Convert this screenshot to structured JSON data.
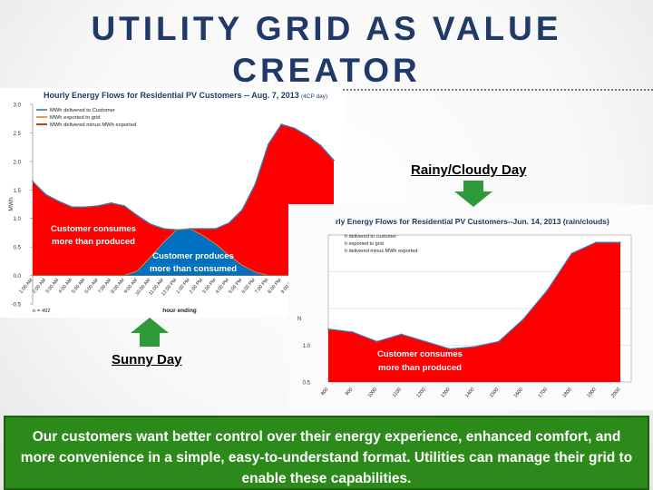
{
  "slide": {
    "title_line1": "UTILITY GRID AS VALUE",
    "title_line2": "CREATOR",
    "sunny_label": "Sunny Day",
    "rainy_label": "Rainy/Cloudy Day",
    "banner_text": "Our customers want better control over their energy experience, enhanced comfort, and more convenience in a simple, easy-to-understand format.  Utilities can manage their grid to enable these capabilities.",
    "colors": {
      "title": "#1f3a68",
      "banner": "#2b8a19",
      "arrow": "#2e9a3c",
      "consume": "#ff0000",
      "produce": "#0070c0"
    }
  },
  "chart_data": [
    {
      "type": "area",
      "title": "Hourly Energy Flows for Residential PV Customers -- Aug. 7, 2013",
      "title_note": "(4CP day)",
      "xlabel": "hour ending",
      "ylabel": "MWh",
      "footnote": "n = 492",
      "ylim": [
        -0.5,
        3.0
      ],
      "yticks": [
        "3.0",
        "2.5",
        "2.0",
        "1.5",
        "1.0",
        "0.5",
        "0.0",
        "-0.5"
      ],
      "legend": [
        "MWh delivered to Customer",
        "MWh exported to grid",
        "MWh delivered minus MWh exported"
      ],
      "categories": [
        "1:00 AM",
        "2:00 AM",
        "3:00 AM",
        "4:00 AM",
        "5:00 AM",
        "6:00 AM",
        "7:00 AM",
        "8:00 AM",
        "9:00 AM",
        "10:00 AM",
        "11:00 AM",
        "12:00 PM",
        "1:00 PM",
        "2:00 PM",
        "3:00 PM",
        "4:00 PM",
        "5:00 PM",
        "6:00 PM",
        "7:00 PM",
        "8:00 PM",
        "9:00 PM",
        "10:00 PM",
        "11:00 PM",
        "12:00 AM"
      ],
      "series": [
        {
          "name": "MWh delivered to Customer",
          "values": [
            1.65,
            1.42,
            1.3,
            1.2,
            1.2,
            1.22,
            1.27,
            1.22,
            1.05,
            0.9,
            0.82,
            0.8,
            0.82,
            0.82,
            0.82,
            0.92,
            1.15,
            1.6,
            2.3,
            2.65,
            2.58,
            2.45,
            2.28,
            2.02
          ]
        },
        {
          "name": "MWh exported to grid",
          "values": [
            0,
            0,
            0,
            0,
            0,
            0,
            0,
            0,
            0.08,
            0.32,
            0.58,
            0.8,
            0.82,
            0.7,
            0.55,
            0.35,
            0.18,
            0.06,
            0,
            0,
            0,
            0,
            0,
            0
          ]
        }
      ],
      "annotations": [
        {
          "text_line1": "Customer consumes",
          "text_line2": "more than produced"
        },
        {
          "text_line1": "Customer produces",
          "text_line2": "more than consumed"
        }
      ]
    },
    {
      "type": "area",
      "title": "rly Energy Flows for Residential PV Customers--Jun. 14, 2013 (rain/clouds)",
      "ylabel": "N",
      "ylim": [
        0.5,
        2.5
      ],
      "yticks": [
        "1.0",
        "0.5"
      ],
      "legend": [
        "h delivered to customer",
        "h exported to grid",
        "h delivered minus MWh exported"
      ],
      "categories": [
        "800",
        "900",
        "1000",
        "1100",
        "1200",
        "1300",
        "1400",
        "1500",
        "1600",
        "1700",
        "1800",
        "1900",
        "2000"
      ],
      "series": [
        {
          "name": "MWh delivered to customer",
          "values": [
            1.22,
            1.18,
            1.05,
            1.15,
            1.05,
            0.95,
            0.98,
            1.05,
            1.35,
            1.75,
            2.25,
            2.4,
            2.4
          ]
        }
      ],
      "annotations": [
        {
          "text_line1": "Customer consumes",
          "text_line2": "more than produced"
        }
      ]
    }
  ]
}
